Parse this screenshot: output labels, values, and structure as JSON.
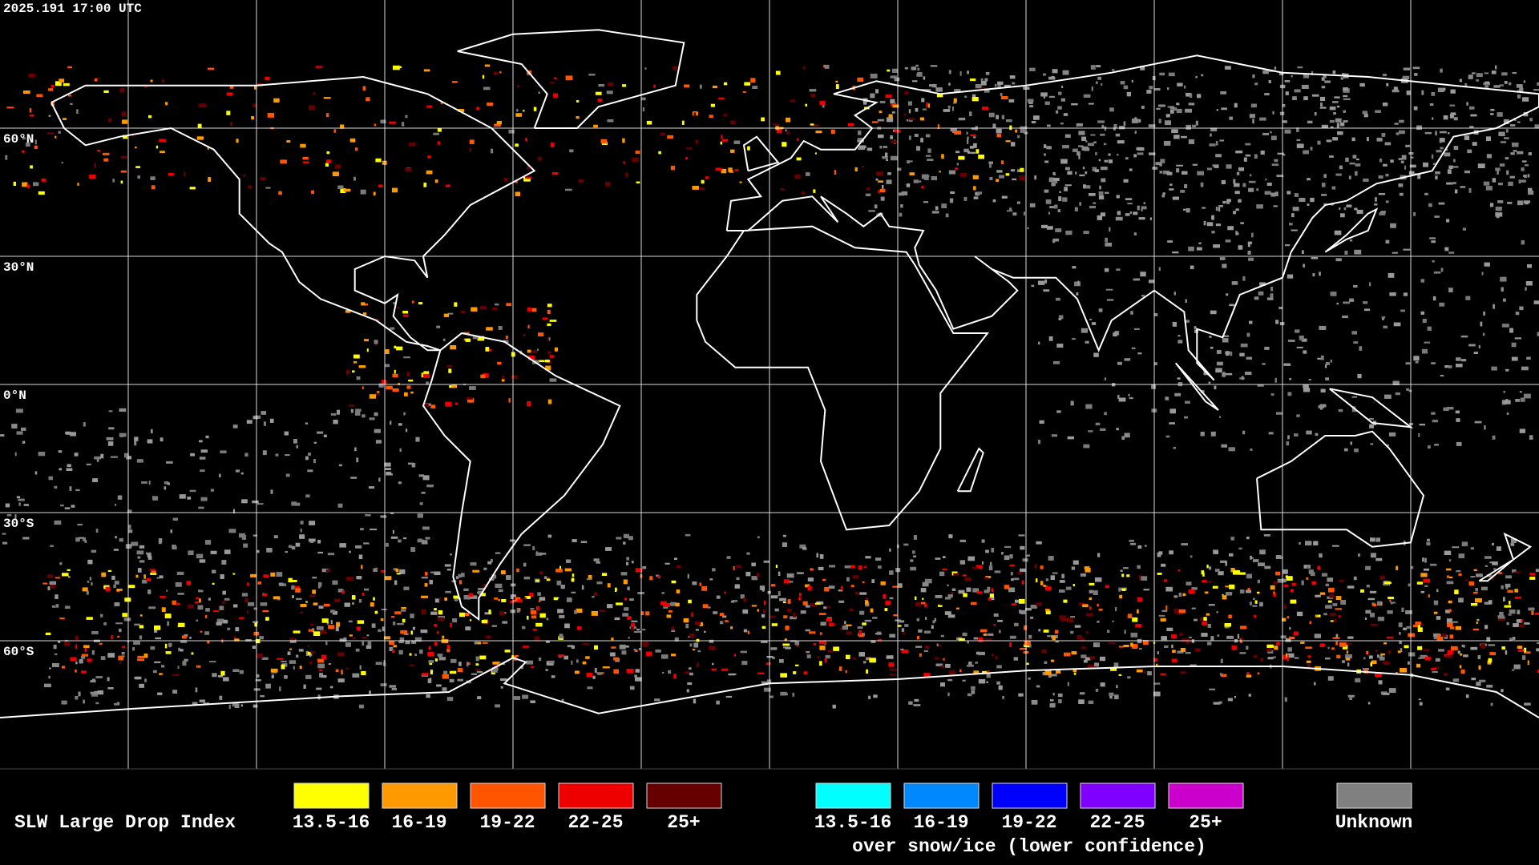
{
  "header": {
    "timestamp": "2025.191 17:00 UTC"
  },
  "map": {
    "latitude_labels": [
      "60°N",
      "30°N",
      "0°N",
      "30°S",
      "60°S"
    ]
  },
  "legend": {
    "title": "SLW Large Drop Index",
    "groups": [
      {
        "items": [
          {
            "label": "13.5-16",
            "color": "#ffff00"
          },
          {
            "label": "16-19",
            "color": "#ff9900"
          },
          {
            "label": "19-22",
            "color": "#ff5500"
          },
          {
            "label": "22-25",
            "color": "#ee0000"
          },
          {
            "label": "25+",
            "color": "#660000"
          }
        ]
      },
      {
        "items": [
          {
            "label": "13.5-16",
            "color": "#00ffff"
          },
          {
            "label": "16-19",
            "color": "#0088ff"
          },
          {
            "label": "19-22",
            "color": "#0000ff"
          },
          {
            "label": "22-25",
            "color": "#8000ff"
          },
          {
            "label": "25+",
            "color": "#cc00cc"
          }
        ],
        "caption": "over snow/ice (lower confidence)"
      },
      {
        "items": [
          {
            "label": "Unknown",
            "color": "#808080"
          }
        ]
      }
    ]
  }
}
